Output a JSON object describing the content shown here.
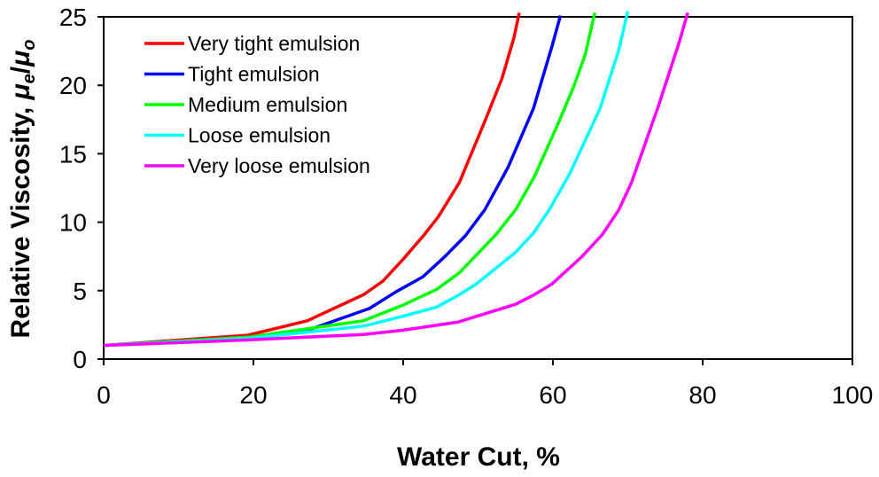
{
  "chart_data": {
    "type": "line",
    "title": "",
    "xlabel": "Water Cut, %",
    "ylabel": {
      "prefix": "Relative Viscosity, ",
      "mu": "μ",
      "sub_e": "e",
      "slash": "/",
      "sub_o": "o"
    },
    "xlim": [
      0,
      100
    ],
    "ylim": [
      0,
      25
    ],
    "xticks": [
      "0",
      "20",
      "40",
      "60",
      "80",
      "100"
    ],
    "yticks": [
      "0",
      "5",
      "10",
      "15",
      "20",
      "25"
    ],
    "grid": false,
    "legend_position": "top-left",
    "series": [
      {
        "name": "Very tight emulsion",
        "color": "#ff0000",
        "points": [
          [
            0,
            1
          ],
          [
            19.3,
            1.75
          ],
          [
            27.2,
            2.8
          ],
          [
            34.7,
            4.7
          ],
          [
            37.3,
            5.7
          ],
          [
            40,
            7.3
          ],
          [
            42.7,
            9
          ],
          [
            44.7,
            10.4
          ],
          [
            47.5,
            12.9
          ],
          [
            51,
            17.5
          ],
          [
            53.2,
            20.5
          ],
          [
            54.8,
            23.5
          ],
          [
            55.5,
            25.3
          ]
        ]
      },
      {
        "name": "Tight emulsion",
        "color": "#0000ff",
        "points": [
          [
            0,
            1
          ],
          [
            19.3,
            1.6
          ],
          [
            27.2,
            2.1
          ],
          [
            35.5,
            3.7
          ],
          [
            39,
            4.9
          ],
          [
            42.6,
            6
          ],
          [
            45.6,
            7.5
          ],
          [
            48.3,
            9
          ],
          [
            50.9,
            10.9
          ],
          [
            54,
            14
          ],
          [
            57.4,
            18.3
          ],
          [
            59.9,
            22.9
          ],
          [
            61,
            25.1
          ]
        ]
      },
      {
        "name": "Medium emulsion",
        "color": "#00ff00",
        "points": [
          [
            0,
            1
          ],
          [
            19.3,
            1.6
          ],
          [
            34.7,
            2.8
          ],
          [
            39.8,
            3.9
          ],
          [
            44.5,
            5.1
          ],
          [
            47.5,
            6.3
          ],
          [
            52.4,
            9.1
          ],
          [
            55,
            10.9
          ],
          [
            57.5,
            13.3
          ],
          [
            60.7,
            17.2
          ],
          [
            62.7,
            19.8
          ],
          [
            64.3,
            22.2
          ],
          [
            65.6,
            25.3
          ]
        ]
      },
      {
        "name": "Loose emulsion",
        "color": "#00ffff",
        "points": [
          [
            0,
            1
          ],
          [
            19.3,
            1.5
          ],
          [
            34.7,
            2.4
          ],
          [
            39.8,
            3.1
          ],
          [
            44.5,
            3.8
          ],
          [
            47.5,
            4.7
          ],
          [
            49.8,
            5.5
          ],
          [
            55,
            7.8
          ],
          [
            57.4,
            9.2
          ],
          [
            59.5,
            10.9
          ],
          [
            62.2,
            13.5
          ],
          [
            66.3,
            18.3
          ],
          [
            68.8,
            22.6
          ],
          [
            70,
            25.4
          ]
        ]
      },
      {
        "name": "Very loose emulsion",
        "color": "#ff00ff",
        "points": [
          [
            0,
            1
          ],
          [
            19.3,
            1.4
          ],
          [
            34.7,
            1.8
          ],
          [
            39.8,
            2.1
          ],
          [
            47.3,
            2.7
          ],
          [
            55,
            4
          ],
          [
            57.5,
            4.7
          ],
          [
            59.9,
            5.5
          ],
          [
            63.9,
            7.5
          ],
          [
            66.6,
            9.1
          ],
          [
            68.8,
            10.9
          ],
          [
            70.5,
            12.9
          ],
          [
            74.1,
            18.5
          ],
          [
            76.9,
            23.2
          ],
          [
            78,
            25.3
          ]
        ]
      }
    ]
  }
}
